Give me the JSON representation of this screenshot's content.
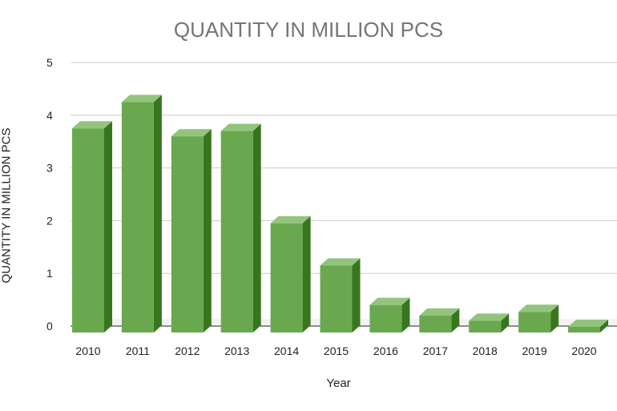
{
  "chart_data": {
    "type": "bar",
    "title": "QUANTITY IN MILLION PCS",
    "xlabel": "Year",
    "ylabel": "QUANTITY IN MILLION PCS",
    "categories": [
      "2010",
      "2011",
      "2012",
      "2013",
      "2014",
      "2015",
      "2016",
      "2017",
      "2018",
      "2019",
      "2020"
    ],
    "values": [
      3.75,
      4.25,
      3.6,
      3.7,
      1.95,
      1.15,
      0.4,
      0.2,
      0.1,
      0.27,
      -0.1
    ],
    "ylim": [
      0,
      5
    ],
    "yticks": [
      "0",
      "1",
      "2",
      "3",
      "4",
      "5"
    ],
    "grid": true,
    "colors": {
      "bar_front": "#6aa84f",
      "bar_side": "#38761d",
      "bar_top": "#93c47d",
      "grid": "#cccccc"
    }
  }
}
